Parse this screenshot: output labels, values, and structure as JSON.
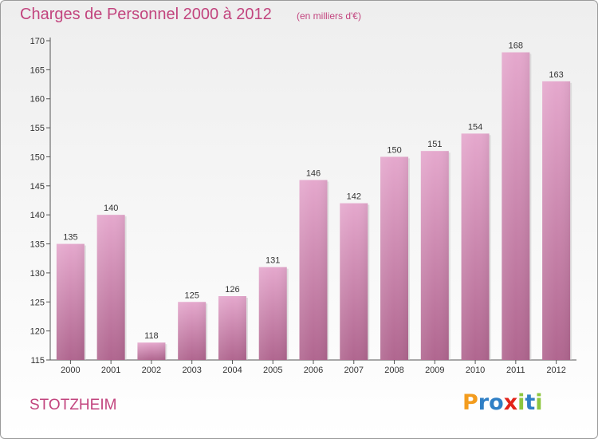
{
  "header": {
    "title": "Charges de Personnel 2000 à 2012",
    "subtitle": "(en milliers d'€)"
  },
  "footer": {
    "commune": "STOTZHEIM",
    "logo_letters": [
      {
        "char": "P",
        "color": "#f39c1e"
      },
      {
        "char": "r",
        "color": "#2f7fc5"
      },
      {
        "char": "o",
        "color": "#2f7fc5"
      },
      {
        "char": "x",
        "color": "#e2231a"
      },
      {
        "char": "i",
        "color": "#8dc63f"
      },
      {
        "char": "t",
        "color": "#2f7fc5"
      },
      {
        "char": "i",
        "color": "#8dc63f"
      }
    ]
  },
  "chart_data": {
    "type": "bar",
    "categories": [
      "2000",
      "2001",
      "2002",
      "2003",
      "2004",
      "2005",
      "2006",
      "2007",
      "2008",
      "2009",
      "2010",
      "2011",
      "2012"
    ],
    "values": [
      135,
      140,
      118,
      125,
      126,
      131,
      146,
      142,
      150,
      151,
      154,
      168,
      163
    ],
    "title": "Charges de Personnel 2000 à 2012",
    "subtitle": "(en milliers d'€)",
    "xlabel": "",
    "ylabel": "",
    "ylim": [
      115,
      170
    ],
    "yticks": [
      115,
      120,
      125,
      130,
      135,
      140,
      145,
      150,
      155,
      160,
      165,
      170
    ],
    "grid": false,
    "bar_color": "#d690b8",
    "data_labels": true
  }
}
